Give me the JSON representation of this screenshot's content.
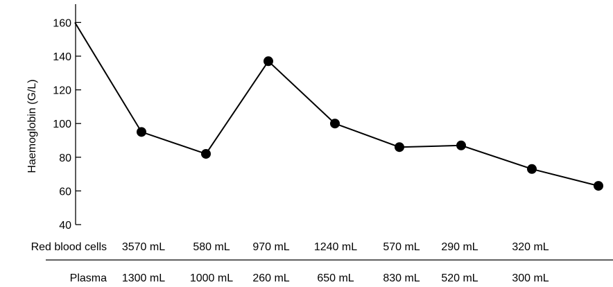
{
  "chart_data": {
    "type": "line",
    "title": "",
    "xlabel": "",
    "ylabel": "Haemoglobin (G/L)",
    "ylim": [
      40,
      170
    ],
    "yticks": [
      40,
      60,
      80,
      100,
      120,
      140,
      160
    ],
    "grid": false,
    "legend": "none",
    "line_color": "#000000",
    "marker_color": "#000000",
    "series": [
      {
        "values": [
          160,
          95,
          82,
          137,
          100,
          86,
          87,
          73,
          63
        ]
      }
    ],
    "transfusion_rows": [
      {
        "label": "Red blood cells",
        "values": [
          "3570 mL",
          "580 mL",
          "970 mL",
          "1240 mL",
          "570 mL",
          "290 mL",
          "320 mL"
        ]
      },
      {
        "label": "Plasma",
        "values": [
          "1300 mL",
          "1000 mL",
          "260 mL",
          "650 mL",
          "830 mL",
          "520 mL",
          "300 mL"
        ]
      }
    ]
  }
}
